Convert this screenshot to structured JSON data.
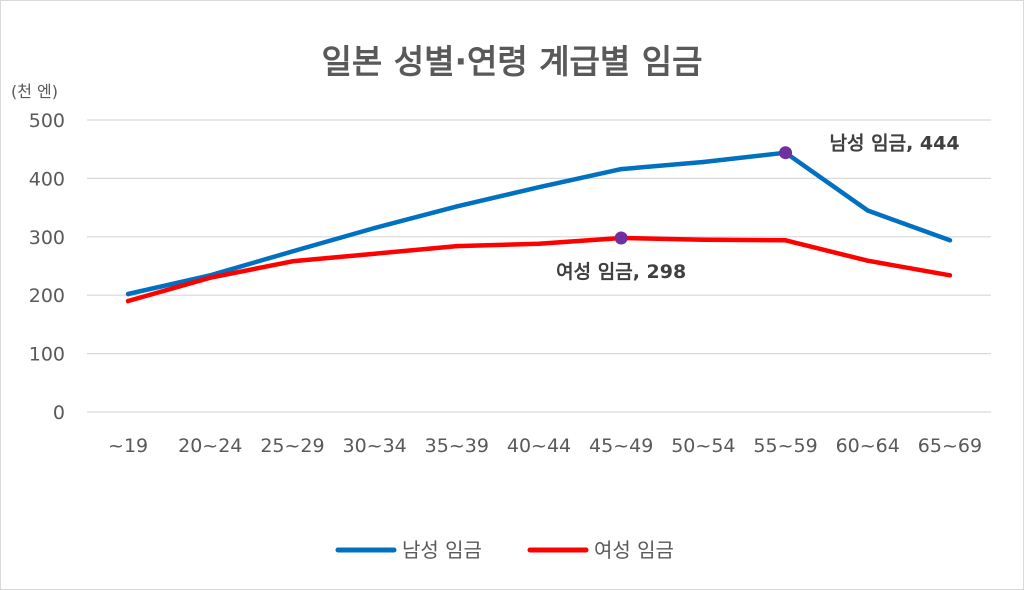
{
  "chart_data": {
    "type": "line",
    "title": "일본 성별·연령 계급별 임금",
    "unit_label": "(천 엔)",
    "categories": [
      "~19",
      "20~24",
      "25~29",
      "30~34",
      "35~39",
      "40~44",
      "45~49",
      "50~54",
      "55~59",
      "60~64",
      "65~69"
    ],
    "ylim": [
      0,
      500
    ],
    "yticks": [
      0,
      100,
      200,
      300,
      400,
      500
    ],
    "grid": true,
    "legend_position": "bottom",
    "series": [
      {
        "name": "남성 임금",
        "color": "#0070c0",
        "values": [
          202,
          234,
          275,
          315,
          352,
          385,
          416,
          428,
          444,
          345,
          294
        ]
      },
      {
        "name": "여성 임금",
        "color": "#ff0000",
        "values": [
          190,
          230,
          258,
          271,
          284,
          288,
          298,
          295,
          294,
          259,
          234
        ]
      }
    ],
    "annotations": [
      {
        "series": 0,
        "index": 8,
        "text": "남성 임금, 444",
        "marker_color": "#7030a0"
      },
      {
        "series": 1,
        "index": 6,
        "text": "여성 임금, 298",
        "marker_color": "#7030a0"
      }
    ]
  }
}
